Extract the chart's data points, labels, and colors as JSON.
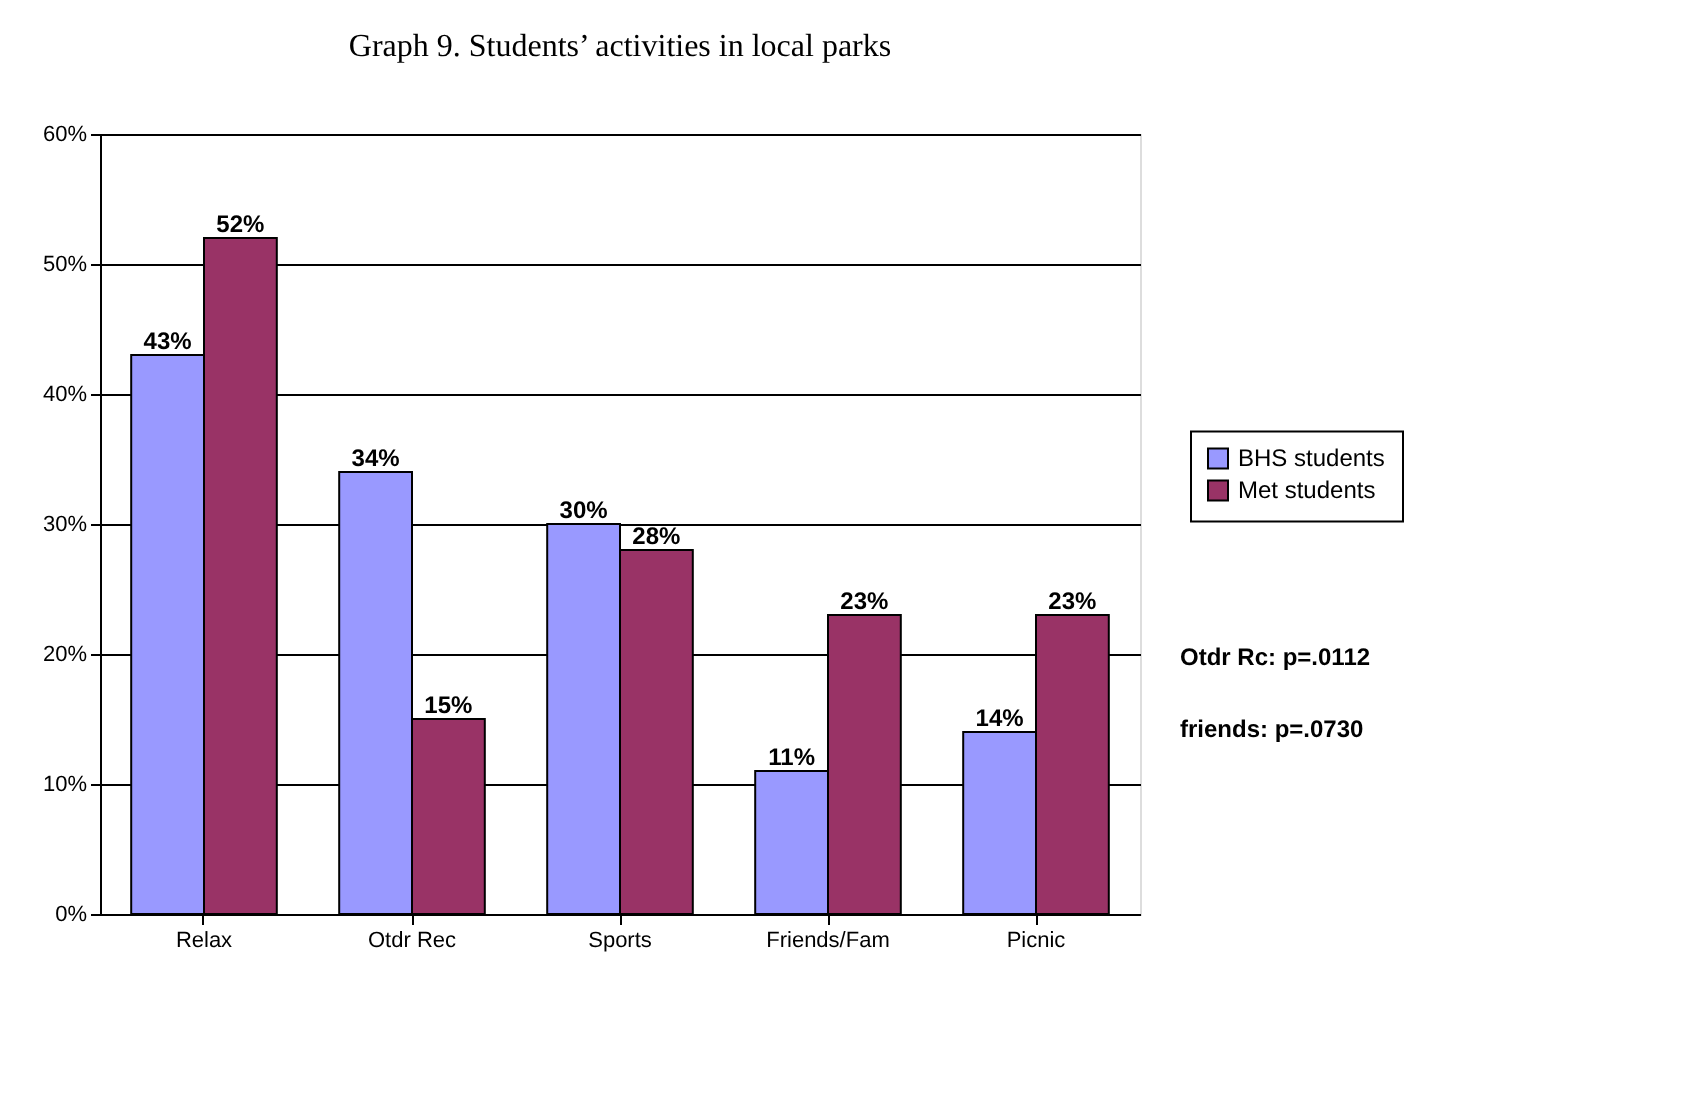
{
  "chart_data": {
    "type": "bar",
    "title": "Graph 9.   Students’ activities in local parks",
    "categories": [
      "Relax",
      "Otdr Rec",
      "Sports",
      "Friends/Fam",
      "Picnic"
    ],
    "series": [
      {
        "name": "BHS students",
        "color": "#9999ff",
        "values": [
          43,
          34,
          30,
          11,
          14
        ],
        "value_labels": [
          "43%",
          "34%",
          "30%",
          "11%",
          "14%"
        ]
      },
      {
        "name": "Met students",
        "color": "#993366",
        "values": [
          52,
          15,
          28,
          23,
          23
        ],
        "value_labels": [
          "52%",
          "15%",
          "28%",
          "23%",
          "23%"
        ]
      }
    ],
    "ylim": [
      0,
      60
    ],
    "yticks": [
      {
        "value": 0,
        "label": "0%"
      },
      {
        "value": 10,
        "label": "10%"
      },
      {
        "value": 20,
        "label": "20%"
      },
      {
        "value": 30,
        "label": "30%"
      },
      {
        "value": 40,
        "label": "40%"
      },
      {
        "value": 50,
        "label": "50%"
      },
      {
        "value": 60,
        "label": "60%"
      }
    ],
    "grid": "y",
    "legend": "right",
    "annotations": [
      "Otdr Rc: p=.0112",
      "friends: p=.0730"
    ]
  }
}
